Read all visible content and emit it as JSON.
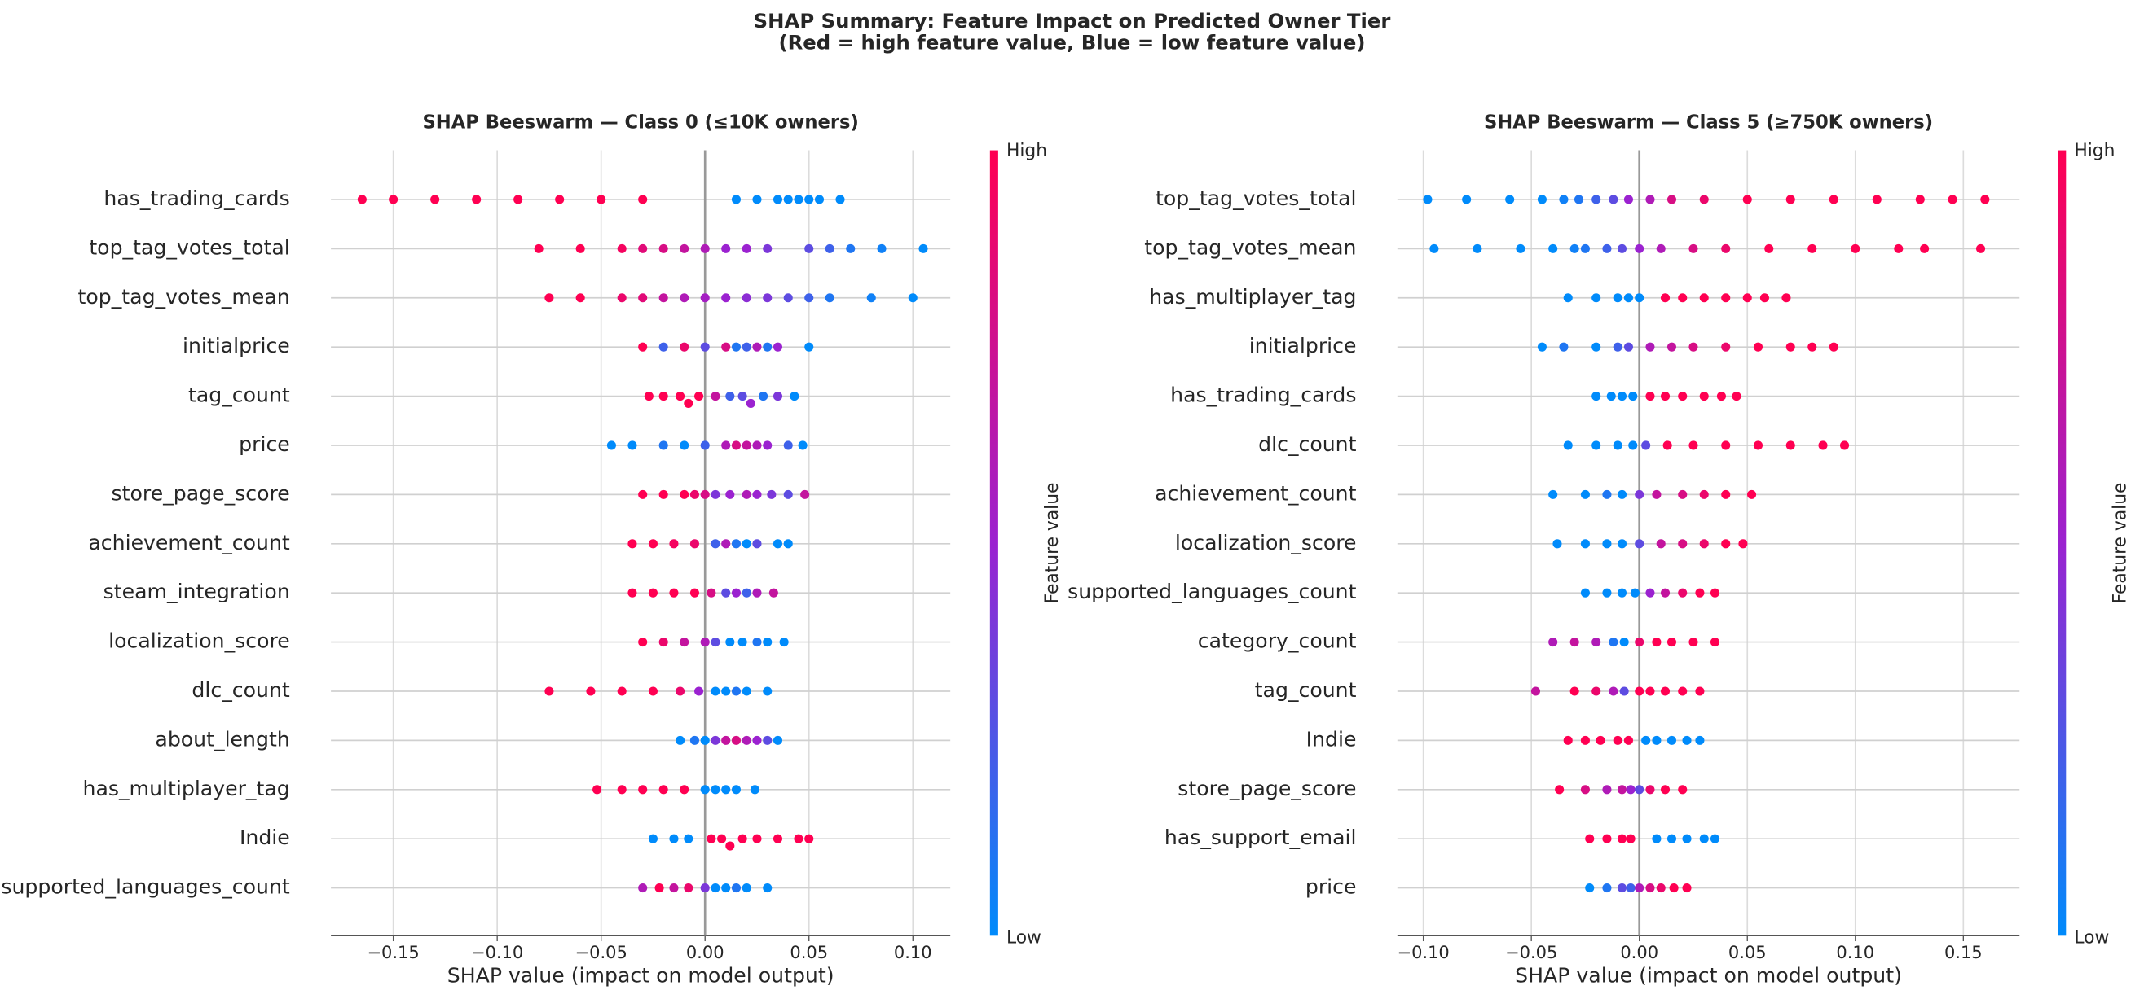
{
  "title": "SHAP Summary: Feature Impact on Predicted Owner Tier",
  "subtitle": "(Red = high feature value, Blue = low feature value)",
  "chart_data": [
    {
      "type": "beeswarm",
      "title": "SHAP Beeswarm — Class 0 (≤10K owners)",
      "xlabel": "SHAP value (impact on model output)",
      "colorbar_label": "Feature value",
      "colorbar_high": "High",
      "colorbar_low": "Low",
      "colormap": [
        "#008bfb",
        "#9b22d0",
        "#ff0052"
      ],
      "grid": true,
      "xlim": [
        -0.18,
        0.118
      ],
      "xticks": [
        {
          "value": -0.15,
          "label": "−0.15"
        },
        {
          "value": -0.1,
          "label": "−0.10"
        },
        {
          "value": -0.05,
          "label": "−0.05"
        },
        {
          "value": 0,
          "label": "0.00"
        },
        0.05,
        {
          "value": 0.1,
          "label": "0.10"
        }
      ],
      "categories": [
        "has_trading_cards",
        "top_tag_votes_total",
        "top_tag_votes_mean",
        "initialprice",
        "tag_count",
        "price",
        "store_page_score",
        "achievement_count",
        "steam_integration",
        "localization_score",
        "dlc_count",
        "about_length",
        "has_multiplayer_tag",
        "Indie",
        "supported_languages_count"
      ],
      "values": [
        [
          -0.165,
          -0.15,
          -0.13,
          -0.11,
          -0.09,
          -0.07,
          -0.05,
          -0.03,
          0.015,
          0.025,
          0.035,
          0.04,
          0.045,
          0.05,
          0.055,
          0.065
        ],
        [
          -0.08,
          -0.06,
          -0.04,
          -0.03,
          -0.02,
          -0.01,
          0,
          0.01,
          0.02,
          0.03,
          0.05,
          0.06,
          0.07,
          0.085,
          0.105
        ],
        [
          -0.075,
          -0.06,
          -0.04,
          -0.03,
          -0.02,
          -0.01,
          0,
          0.01,
          0.02,
          0.03,
          0.04,
          0.05,
          0.06,
          0.08,
          0.1
        ],
        [
          -0.03,
          -0.02,
          -0.01,
          0,
          0.01,
          0.015,
          0.02,
          0.025,
          0.03,
          0.035,
          0.05
        ],
        [
          -0.027,
          -0.02,
          -0.012,
          -0.008,
          -0.003,
          0.005,
          0.012,
          0.018,
          0.022,
          0.028,
          0.035,
          0.043
        ],
        [
          -0.045,
          -0.035,
          -0.02,
          -0.01,
          0,
          0.01,
          0.015,
          0.02,
          0.025,
          0.03,
          0.04,
          0.047
        ],
        [
          -0.03,
          -0.02,
          -0.01,
          -0.005,
          0,
          0.005,
          0.012,
          0.02,
          0.025,
          0.032,
          0.04,
          0.048
        ],
        [
          -0.035,
          -0.025,
          -0.015,
          -0.005,
          0.005,
          0.01,
          0.015,
          0.02,
          0.025,
          0.035,
          0.04
        ],
        [
          -0.035,
          -0.025,
          -0.015,
          -0.005,
          0.003,
          0.01,
          0.015,
          0.02,
          0.025,
          0.033
        ],
        [
          -0.03,
          -0.02,
          -0.01,
          0,
          0.005,
          0.012,
          0.018,
          0.025,
          0.03,
          0.038
        ],
        [
          -0.075,
          -0.055,
          -0.04,
          -0.025,
          -0.012,
          -0.003,
          0.005,
          0.01,
          0.015,
          0.02,
          0.03
        ],
        [
          -0.012,
          -0.005,
          0,
          0.005,
          0.01,
          0.015,
          0.02,
          0.025,
          0.03,
          0.035
        ],
        [
          -0.052,
          -0.04,
          -0.03,
          -0.02,
          -0.01,
          0,
          0.005,
          0.01,
          0.015,
          0.024
        ],
        [
          -0.025,
          -0.015,
          -0.008,
          0.003,
          0.008,
          0.012,
          0.018,
          0.025,
          0.035,
          0.045,
          0.05
        ],
        [
          -0.03,
          -0.022,
          -0.015,
          -0.008,
          0,
          0.005,
          0.01,
          0.015,
          0.02,
          0.03
        ]
      ],
      "feature_values": [
        [
          1,
          1,
          1,
          1,
          1,
          1,
          1,
          1,
          0,
          0,
          0,
          0,
          0,
          0,
          0,
          0
        ],
        [
          1,
          1,
          0.95,
          0.85,
          0.8,
          0.7,
          0.6,
          0.5,
          0.5,
          0.4,
          0.3,
          0.2,
          0.1,
          0.05,
          0
        ],
        [
          1,
          1,
          0.9,
          0.85,
          0.7,
          0.6,
          0.55,
          0.5,
          0.45,
          0.4,
          0.3,
          0.2,
          0.1,
          0.05,
          0
        ],
        [
          1,
          0.2,
          0.9,
          0.3,
          0.8,
          0.1,
          0.2,
          0.6,
          0.1,
          0.5,
          0
        ],
        [
          1,
          1,
          1,
          1,
          1,
          0.7,
          0.2,
          0.3,
          0.5,
          0.1,
          0.4,
          0
        ],
        [
          0,
          0,
          0.1,
          0,
          0.2,
          0.6,
          0.8,
          0.7,
          0.6,
          0.5,
          0.2,
          0
        ],
        [
          1,
          1,
          1,
          0.9,
          0.8,
          0.4,
          0.5,
          0.6,
          0.5,
          0.4,
          0.3,
          0.7
        ],
        [
          1,
          1,
          0.95,
          0.9,
          0.2,
          0.6,
          0.1,
          0,
          0.3,
          0,
          0
        ],
        [
          1,
          1,
          1,
          1,
          0.8,
          0.3,
          0.5,
          0.2,
          0.6,
          0.7
        ],
        [
          1,
          0.9,
          0.7,
          0.6,
          0.3,
          0,
          0,
          0.1,
          0,
          0
        ],
        [
          1,
          1,
          1,
          1,
          0.9,
          0.5,
          0,
          0,
          0.1,
          0,
          0
        ],
        [
          0,
          0.1,
          0,
          0.4,
          0.7,
          0.8,
          0.6,
          0.5,
          0.3,
          0
        ],
        [
          1,
          1,
          1,
          1,
          1,
          0,
          0,
          0,
          0,
          0
        ],
        [
          0,
          0,
          0,
          1,
          1,
          1,
          1,
          1,
          1,
          1,
          1
        ],
        [
          0.6,
          1,
          0.7,
          0.9,
          0.4,
          0,
          0,
          0.1,
          0,
          0
        ]
      ]
    },
    {
      "type": "beeswarm",
      "title": "SHAP Beeswarm — Class 5 (≥750K owners)",
      "xlabel": "SHAP value (impact on model output)",
      "colorbar_label": "Feature value",
      "colorbar_high": "High",
      "colorbar_low": "Low",
      "colormap": [
        "#008bfb",
        "#9b22d0",
        "#ff0052"
      ],
      "grid": true,
      "xlim": [
        -0.112,
        0.176
      ],
      "xticks": [
        {
          "value": -0.1,
          "label": "−0.10"
        },
        {
          "value": -0.05,
          "label": "−0.05"
        },
        {
          "value": 0,
          "label": "0.00"
        },
        0.05,
        {
          "value": 0.1,
          "label": "0.10"
        },
        0.15
      ],
      "categories": [
        "top_tag_votes_total",
        "top_tag_votes_mean",
        "has_multiplayer_tag",
        "initialprice",
        "has_trading_cards",
        "dlc_count",
        "achievement_count",
        "localization_score",
        "supported_languages_count",
        "category_count",
        "tag_count",
        "Indie",
        "store_page_score",
        "has_support_email",
        "price"
      ],
      "values": [
        [
          -0.098,
          -0.08,
          -0.06,
          -0.045,
          -0.035,
          -0.028,
          -0.02,
          -0.012,
          -0.005,
          0.005,
          0.015,
          0.03,
          0.05,
          0.07,
          0.09,
          0.11,
          0.13,
          0.145,
          0.16
        ],
        [
          -0.095,
          -0.075,
          -0.055,
          -0.04,
          -0.03,
          -0.025,
          -0.015,
          -0.008,
          0,
          0.01,
          0.025,
          0.04,
          0.06,
          0.08,
          0.1,
          0.12,
          0.132,
          0.158
        ],
        [
          -0.033,
          -0.02,
          -0.01,
          -0.005,
          0,
          0.012,
          0.02,
          0.03,
          0.04,
          0.05,
          0.058,
          0.068
        ],
        [
          -0.045,
          -0.035,
          -0.02,
          -0.01,
          -0.005,
          0.005,
          0.015,
          0.025,
          0.04,
          0.055,
          0.07,
          0.08,
          0.09
        ],
        [
          -0.02,
          -0.013,
          -0.008,
          -0.003,
          0.005,
          0.012,
          0.02,
          0.03,
          0.038,
          0.045
        ],
        [
          -0.033,
          -0.02,
          -0.01,
          -0.003,
          0.003,
          0.013,
          0.025,
          0.04,
          0.055,
          0.07,
          0.085,
          0.095
        ],
        [
          -0.04,
          -0.025,
          -0.015,
          -0.008,
          0,
          0.008,
          0.02,
          0.03,
          0.04,
          0.052
        ],
        [
          -0.038,
          -0.025,
          -0.015,
          -0.008,
          0,
          0.01,
          0.02,
          0.03,
          0.04,
          0.048
        ],
        [
          -0.025,
          -0.015,
          -0.008,
          -0.002,
          0.005,
          0.012,
          0.02,
          0.028,
          0.035
        ],
        [
          -0.04,
          -0.03,
          -0.02,
          -0.012,
          -0.007,
          0,
          0.008,
          0.015,
          0.025,
          0.035
        ],
        [
          -0.048,
          -0.03,
          -0.02,
          -0.012,
          -0.007,
          0,
          0.005,
          0.012,
          0.02,
          0.028
        ],
        [
          -0.033,
          -0.025,
          -0.018,
          -0.01,
          -0.005,
          0.003,
          0.008,
          0.015,
          0.022,
          0.028
        ],
        [
          -0.037,
          -0.025,
          -0.015,
          -0.008,
          -0.004,
          0,
          0.005,
          0.012,
          0.02
        ],
        [
          -0.023,
          -0.015,
          -0.008,
          -0.004,
          0.008,
          0.015,
          0.022,
          0.03,
          0.035
        ],
        [
          -0.023,
          -0.015,
          -0.008,
          -0.004,
          0,
          0.005,
          0.01,
          0.016,
          0.022
        ]
      ],
      "feature_values": [
        [
          0,
          0,
          0,
          0,
          0.05,
          0.1,
          0.2,
          0.3,
          0.5,
          0.6,
          0.8,
          0.9,
          1,
          1,
          1,
          1,
          1,
          1,
          1
        ],
        [
          0,
          0,
          0,
          0,
          0.05,
          0.1,
          0.2,
          0.3,
          0.5,
          0.6,
          0.8,
          0.9,
          1,
          1,
          1,
          1,
          1,
          1
        ],
        [
          0,
          0,
          0,
          0,
          0,
          1,
          1,
          1,
          1,
          1,
          1,
          1
        ],
        [
          0,
          0.1,
          0,
          0.2,
          0.3,
          0.6,
          0.7,
          0.8,
          0.9,
          1,
          1,
          1,
          1
        ],
        [
          0,
          0,
          0,
          0,
          1,
          1,
          1,
          1,
          1,
          1
        ],
        [
          0,
          0,
          0,
          0,
          0.3,
          1,
          1,
          1,
          1,
          1,
          1,
          1
        ],
        [
          0,
          0,
          0.1,
          0,
          0.4,
          0.7,
          0.8,
          0.9,
          1,
          1
        ],
        [
          0,
          0,
          0,
          0,
          0.3,
          0.7,
          0.8,
          0.9,
          1,
          1
        ],
        [
          0,
          0,
          0,
          0,
          0.5,
          0.7,
          0.9,
          1,
          1
        ],
        [
          0.6,
          0.7,
          0.6,
          0.1,
          0,
          0.9,
          1,
          1,
          1,
          1
        ],
        [
          0.7,
          1,
          0.9,
          0.6,
          0.3,
          1,
          1,
          1,
          1,
          1
        ],
        [
          1,
          1,
          1,
          1,
          1,
          0,
          0,
          0,
          0,
          0
        ],
        [
          1,
          0.8,
          0.6,
          0.7,
          0.5,
          0.3,
          0.9,
          1,
          1
        ],
        [
          1,
          1,
          1,
          1,
          0,
          0,
          0,
          0,
          0
        ],
        [
          0,
          0.1,
          0.3,
          0.2,
          0.6,
          0.8,
          0.9,
          1,
          1
        ]
      ]
    }
  ]
}
